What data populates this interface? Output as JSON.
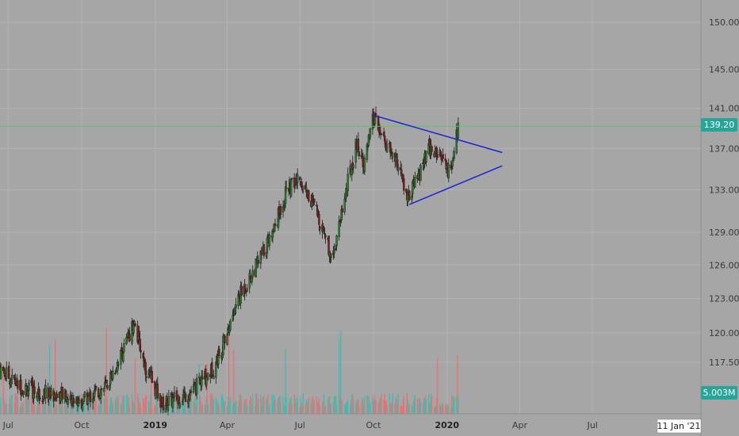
{
  "chart_data": {
    "type": "candlestick",
    "y_axis": {
      "ticks": [
        "150.00",
        "145.00",
        "141.00",
        "137.00",
        "133.00",
        "129.00",
        "126.00",
        "123.00",
        "120.00",
        "117.50"
      ],
      "tick_values": [
        150,
        145,
        141,
        137,
        133,
        129,
        126,
        123,
        120,
        117.5
      ],
      "scale": "log",
      "position": "right"
    },
    "x_axis": {
      "ticks": [
        {
          "label": "Jul",
          "bold": false,
          "date": "2018-07-01"
        },
        {
          "label": "Oct",
          "bold": false,
          "date": "2018-10-01"
        },
        {
          "label": "2019",
          "bold": true,
          "date": "2019-01-01"
        },
        {
          "label": "Apr",
          "bold": false,
          "date": "2019-04-01"
        },
        {
          "label": "Jul",
          "bold": false,
          "date": "2019-07-01"
        },
        {
          "label": "Oct",
          "bold": false,
          "date": "2019-10-01"
        },
        {
          "label": "2020",
          "bold": true,
          "date": "2020-01-01"
        },
        {
          "label": "Apr",
          "bold": false,
          "date": "2020-04-01"
        },
        {
          "label": "Jul",
          "bold": false,
          "date": "2020-07-01"
        }
      ],
      "date_range": [
        "2018-06-01",
        "2020-10-01"
      ]
    },
    "price_path": [
      {
        "date": "2018-06-20",
        "close": 117.0
      },
      {
        "date": "2018-07-15",
        "close": 115.5
      },
      {
        "date": "2018-08-05",
        "close": 115.0
      },
      {
        "date": "2018-09-01",
        "close": 114.8
      },
      {
        "date": "2018-10-01",
        "close": 114.2
      },
      {
        "date": "2018-11-01",
        "close": 115.5
      },
      {
        "date": "2018-11-25",
        "close": 119.0
      },
      {
        "date": "2018-12-05",
        "close": 121.0
      },
      {
        "date": "2018-12-20",
        "close": 117.0
      },
      {
        "date": "2019-01-10",
        "close": 114.0
      },
      {
        "date": "2019-02-15",
        "close": 115.0
      },
      {
        "date": "2019-03-15",
        "close": 117.0
      },
      {
        "date": "2019-04-01",
        "close": 120.0
      },
      {
        "date": "2019-04-15",
        "close": 123.0
      },
      {
        "date": "2019-05-01",
        "close": 125.0
      },
      {
        "date": "2019-05-15",
        "close": 127.0
      },
      {
        "date": "2019-06-01",
        "close": 130.0
      },
      {
        "date": "2019-06-15",
        "close": 133.0
      },
      {
        "date": "2019-07-01",
        "close": 134.0
      },
      {
        "date": "2019-07-15",
        "close": 132.0
      },
      {
        "date": "2019-08-01",
        "close": 129.0
      },
      {
        "date": "2019-08-10",
        "close": 126.5
      },
      {
        "date": "2019-08-25",
        "close": 132.0
      },
      {
        "date": "2019-09-10",
        "close": 137.5
      },
      {
        "date": "2019-09-20",
        "close": 135.5
      },
      {
        "date": "2019-10-01",
        "close": 140.0
      },
      {
        "date": "2019-10-15",
        "close": 137.5
      },
      {
        "date": "2019-11-01",
        "close": 135.5
      },
      {
        "date": "2019-11-12",
        "close": 132.0
      },
      {
        "date": "2019-11-25",
        "close": 134.0
      },
      {
        "date": "2019-12-10",
        "close": 137.0
      },
      {
        "date": "2019-12-25",
        "close": 136.0
      },
      {
        "date": "2020-01-05",
        "close": 134.5
      },
      {
        "date": "2020-01-15",
        "close": 139.2
      }
    ],
    "volume": {
      "last_label": "5.003M"
    },
    "last_price": {
      "value": 139.2,
      "label": "139.20",
      "color": "#26a69a"
    },
    "trendlines": [
      {
        "color": "#1a23d6",
        "from": {
          "date": "2019-10-01",
          "price": 140.3
        },
        "to": {
          "date": "2020-03-10",
          "price": 136.6
        }
      },
      {
        "color": "#1a23d6",
        "from": {
          "date": "2019-11-15",
          "price": 131.6
        },
        "to": {
          "date": "2020-03-10",
          "price": 135.3
        }
      }
    ],
    "colors": {
      "up": "#2e7d32",
      "down": "#8b1a1a",
      "vol_up": "#4db6ac",
      "vol_down": "#e57373",
      "background": "#a6a6a6",
      "grid": "#b3b3b3",
      "price_line": "#66bb6a"
    },
    "grid": true,
    "legend": "none"
  },
  "crosshair_date_label": "11 Jan '21"
}
